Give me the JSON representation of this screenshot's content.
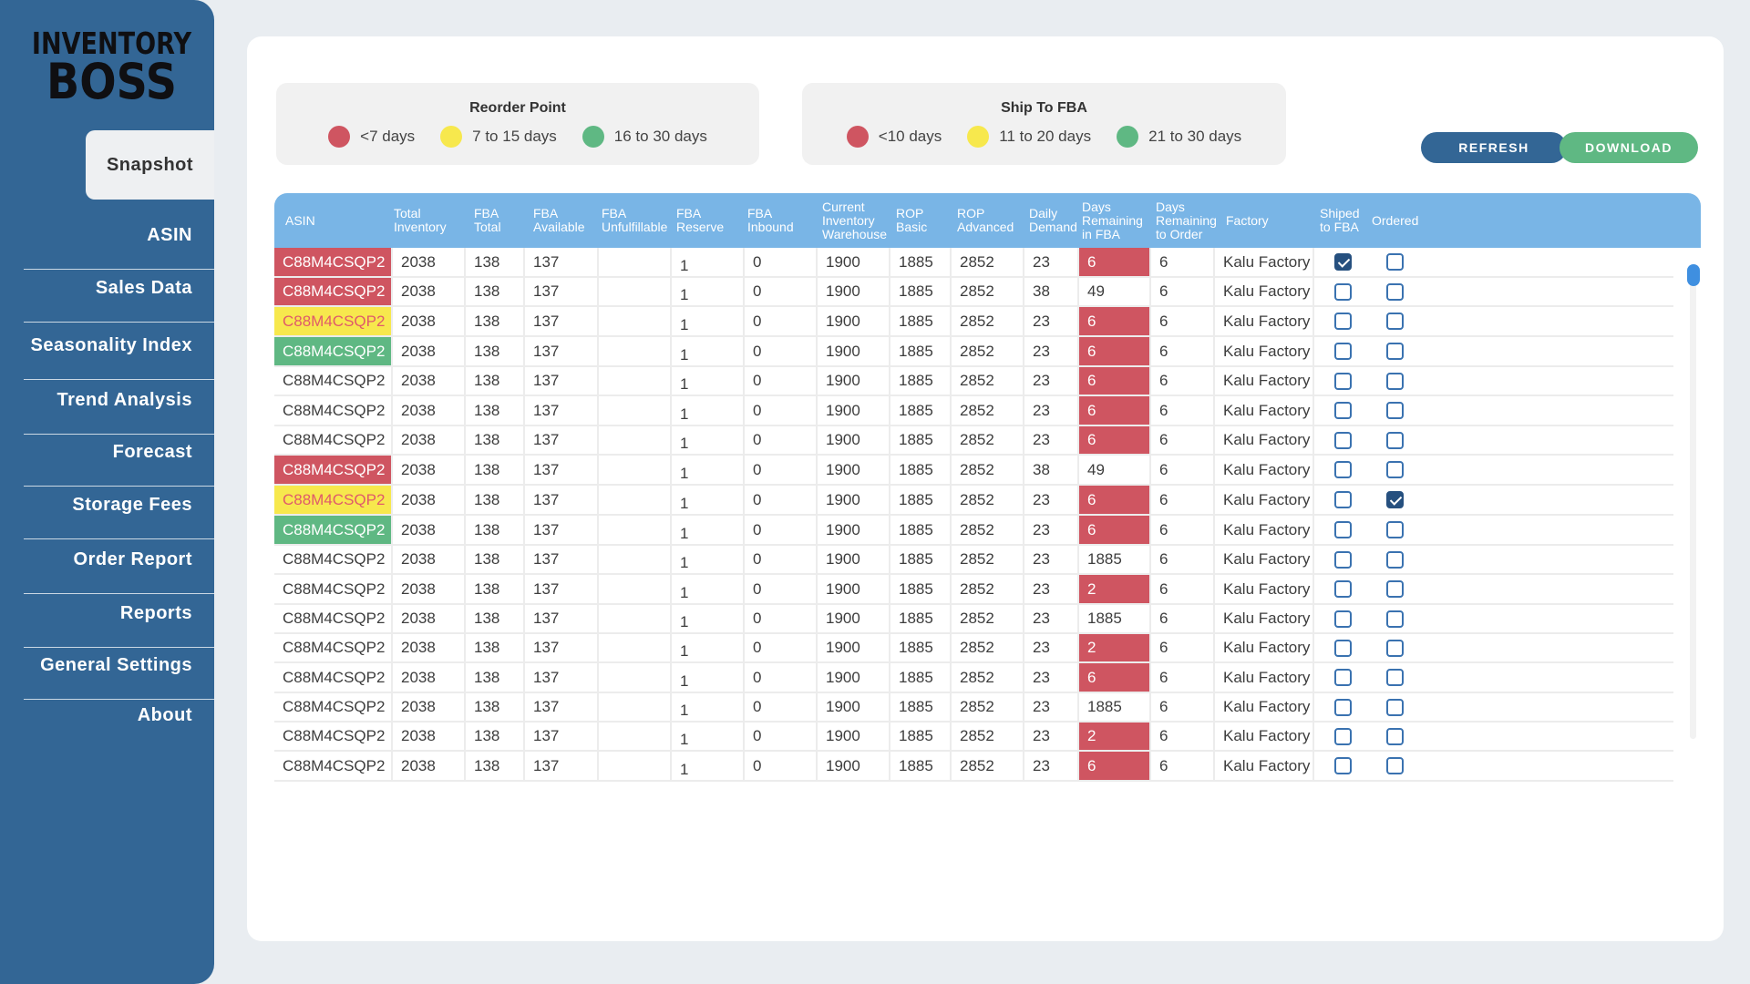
{
  "app": {
    "logo_line1": "INVENTORY",
    "logo_line2": "BOSS"
  },
  "nav": [
    "Snapshot",
    "ASIN",
    "Sales Data",
    "Seasonality Index",
    "Trend Analysis",
    "Forecast",
    "Storage Fees",
    "Order Report",
    "Reports",
    "General Settings",
    "About"
  ],
  "active_nav": "Snapshot",
  "legend_reorder": {
    "title": "Reorder Point",
    "items": [
      {
        "label": "<7 days",
        "color": "#cf5561"
      },
      {
        "label": "7 to 15 days",
        "color": "#f7e84d"
      },
      {
        "label": "16 to 30 days",
        "color": "#5fb883"
      }
    ]
  },
  "legend_ship": {
    "title": "Ship To FBA",
    "items": [
      {
        "label": "<10 days",
        "color": "#cf5561"
      },
      {
        "label": "11 to 20 days",
        "color": "#f7e84d"
      },
      {
        "label": "21 to 30 days",
        "color": "#5fb883"
      }
    ]
  },
  "buttons": {
    "refresh": "REFRESH",
    "download": "DOWNLOAD",
    "refresh_color": "#336695",
    "download_color": "#5fb883"
  },
  "columns": [
    "ASIN",
    "Total Inventory",
    "FBA Total",
    "FBA Available",
    "FBA Unfulfillable",
    "FBA Reserve",
    "FBA Inbound",
    "Current Inventory Warehouse",
    "ROP Basic",
    "ROP Advanced",
    "Daily Demand",
    "Days Remaining in FBA",
    "Days Remaining to Order",
    "Factory",
    "Shiped to FBA",
    "Ordered"
  ],
  "rows": [
    {
      "asin": "C88M4CSQP2",
      "asin_status": "red",
      "total": "2038",
      "fba_total": "138",
      "fba_avail": "137",
      "fba_unf": "",
      "fba_res": "1",
      "fba_in": "0",
      "warehouse": "1900",
      "rop_basic": "1885",
      "rop_adv": "2852",
      "demand": "23",
      "days_fba": "6",
      "days_fba_status": "red",
      "days_order": "6",
      "factory": "Kalu Factory",
      "shipped": true,
      "ordered": false
    },
    {
      "asin": "C88M4CSQP2",
      "asin_status": "red",
      "total": "2038",
      "fba_total": "138",
      "fba_avail": "137",
      "fba_unf": "",
      "fba_res": "1",
      "fba_in": "0",
      "warehouse": "1900",
      "rop_basic": "1885",
      "rop_adv": "2852",
      "demand": "38",
      "days_fba": "49",
      "days_fba_status": "",
      "days_order": "6",
      "factory": "Kalu Factory",
      "shipped": false,
      "ordered": false
    },
    {
      "asin": "C88M4CSQP2",
      "asin_status": "yellow",
      "total": "2038",
      "fba_total": "138",
      "fba_avail": "137",
      "fba_unf": "",
      "fba_res": "1",
      "fba_in": "0",
      "warehouse": "1900",
      "rop_basic": "1885",
      "rop_adv": "2852",
      "demand": "23",
      "days_fba": "6",
      "days_fba_status": "red",
      "days_order": "6",
      "factory": "Kalu Factory",
      "shipped": false,
      "ordered": false
    },
    {
      "asin": "C88M4CSQP2",
      "asin_status": "green",
      "total": "2038",
      "fba_total": "138",
      "fba_avail": "137",
      "fba_unf": "",
      "fba_res": "1",
      "fba_in": "0",
      "warehouse": "1900",
      "rop_basic": "1885",
      "rop_adv": "2852",
      "demand": "23",
      "days_fba": "6",
      "days_fba_status": "red",
      "days_order": "6",
      "factory": "Kalu Factory",
      "shipped": false,
      "ordered": false
    },
    {
      "asin": "C88M4CSQP2",
      "asin_status": "",
      "total": "2038",
      "fba_total": "138",
      "fba_avail": "137",
      "fba_unf": "",
      "fba_res": "1",
      "fba_in": "0",
      "warehouse": "1900",
      "rop_basic": "1885",
      "rop_adv": "2852",
      "demand": "23",
      "days_fba": "6",
      "days_fba_status": "red",
      "days_order": "6",
      "factory": "Kalu Factory",
      "shipped": false,
      "ordered": false
    },
    {
      "asin": "C88M4CSQP2",
      "asin_status": "",
      "total": "2038",
      "fba_total": "138",
      "fba_avail": "137",
      "fba_unf": "",
      "fba_res": "1",
      "fba_in": "0",
      "warehouse": "1900",
      "rop_basic": "1885",
      "rop_adv": "2852",
      "demand": "23",
      "days_fba": "6",
      "days_fba_status": "red",
      "days_order": "6",
      "factory": "Kalu Factory",
      "shipped": false,
      "ordered": false
    },
    {
      "asin": "C88M4CSQP2",
      "asin_status": "",
      "total": "2038",
      "fba_total": "138",
      "fba_avail": "137",
      "fba_unf": "",
      "fba_res": "1",
      "fba_in": "0",
      "warehouse": "1900",
      "rop_basic": "1885",
      "rop_adv": "2852",
      "demand": "23",
      "days_fba": "6",
      "days_fba_status": "red",
      "days_order": "6",
      "factory": "Kalu Factory",
      "shipped": false,
      "ordered": false
    },
    {
      "asin": "C88M4CSQP2",
      "asin_status": "red",
      "total": "2038",
      "fba_total": "138",
      "fba_avail": "137",
      "fba_unf": "",
      "fba_res": "1",
      "fba_in": "0",
      "warehouse": "1900",
      "rop_basic": "1885",
      "rop_adv": "2852",
      "demand": "38",
      "days_fba": "49",
      "days_fba_status": "",
      "days_order": "6",
      "factory": "Kalu Factory",
      "shipped": false,
      "ordered": false
    },
    {
      "asin": "C88M4CSQP2",
      "asin_status": "yellow",
      "total": "2038",
      "fba_total": "138",
      "fba_avail": "137",
      "fba_unf": "",
      "fba_res": "1",
      "fba_in": "0",
      "warehouse": "1900",
      "rop_basic": "1885",
      "rop_adv": "2852",
      "demand": "23",
      "days_fba": "6",
      "days_fba_status": "red",
      "days_order": "6",
      "factory": "Kalu Factory",
      "shipped": false,
      "ordered": true
    },
    {
      "asin": "C88M4CSQP2",
      "asin_status": "green",
      "total": "2038",
      "fba_total": "138",
      "fba_avail": "137",
      "fba_unf": "",
      "fba_res": "1",
      "fba_in": "0",
      "warehouse": "1900",
      "rop_basic": "1885",
      "rop_adv": "2852",
      "demand": "23",
      "days_fba": "6",
      "days_fba_status": "red",
      "days_order": "6",
      "factory": "Kalu Factory",
      "shipped": false,
      "ordered": false
    },
    {
      "asin": "C88M4CSQP2",
      "asin_status": "",
      "total": "2038",
      "fba_total": "138",
      "fba_avail": "137",
      "fba_unf": "",
      "fba_res": "1",
      "fba_in": "0",
      "warehouse": "1900",
      "rop_basic": "1885",
      "rop_adv": "2852",
      "demand": "23",
      "days_fba": "1885",
      "days_fba_status": "",
      "days_order": "6",
      "factory": "Kalu Factory",
      "shipped": false,
      "ordered": false
    },
    {
      "asin": "C88M4CSQP2",
      "asin_status": "",
      "total": "2038",
      "fba_total": "138",
      "fba_avail": "137",
      "fba_unf": "",
      "fba_res": "1",
      "fba_in": "0",
      "warehouse": "1900",
      "rop_basic": "1885",
      "rop_adv": "2852",
      "demand": "23",
      "days_fba": "2",
      "days_fba_status": "red",
      "days_order": "6",
      "factory": "Kalu Factory",
      "shipped": false,
      "ordered": false
    },
    {
      "asin": "C88M4CSQP2",
      "asin_status": "",
      "total": "2038",
      "fba_total": "138",
      "fba_avail": "137",
      "fba_unf": "",
      "fba_res": "1",
      "fba_in": "0",
      "warehouse": "1900",
      "rop_basic": "1885",
      "rop_adv": "2852",
      "demand": "23",
      "days_fba": "1885",
      "days_fba_status": "",
      "days_order": "6",
      "factory": "Kalu Factory",
      "shipped": false,
      "ordered": false
    },
    {
      "asin": "C88M4CSQP2",
      "asin_status": "",
      "total": "2038",
      "fba_total": "138",
      "fba_avail": "137",
      "fba_unf": "",
      "fba_res": "1",
      "fba_in": "0",
      "warehouse": "1900",
      "rop_basic": "1885",
      "rop_adv": "2852",
      "demand": "23",
      "days_fba": "2",
      "days_fba_status": "red",
      "days_order": "6",
      "factory": "Kalu Factory",
      "shipped": false,
      "ordered": false
    },
    {
      "asin": "C88M4CSQP2",
      "asin_status": "",
      "total": "2038",
      "fba_total": "138",
      "fba_avail": "137",
      "fba_unf": "",
      "fba_res": "1",
      "fba_in": "0",
      "warehouse": "1900",
      "rop_basic": "1885",
      "rop_adv": "2852",
      "demand": "23",
      "days_fba": "6",
      "days_fba_status": "red",
      "days_order": "6",
      "factory": "Kalu Factory",
      "shipped": false,
      "ordered": false
    },
    {
      "asin": "C88M4CSQP2",
      "asin_status": "",
      "total": "2038",
      "fba_total": "138",
      "fba_avail": "137",
      "fba_unf": "",
      "fba_res": "1",
      "fba_in": "0",
      "warehouse": "1900",
      "rop_basic": "1885",
      "rop_adv": "2852",
      "demand": "23",
      "days_fba": "1885",
      "days_fba_status": "",
      "days_order": "6",
      "factory": "Kalu Factory",
      "shipped": false,
      "ordered": false
    },
    {
      "asin": "C88M4CSQP2",
      "asin_status": "",
      "total": "2038",
      "fba_total": "138",
      "fba_avail": "137",
      "fba_unf": "",
      "fba_res": "1",
      "fba_in": "0",
      "warehouse": "1900",
      "rop_basic": "1885",
      "rop_adv": "2852",
      "demand": "23",
      "days_fba": "2",
      "days_fba_status": "red",
      "days_order": "6",
      "factory": "Kalu Factory",
      "shipped": false,
      "ordered": false
    },
    {
      "asin": "C88M4CSQP2",
      "asin_status": "",
      "total": "2038",
      "fba_total": "138",
      "fba_avail": "137",
      "fba_unf": "",
      "fba_res": "1",
      "fba_in": "0",
      "warehouse": "1900",
      "rop_basic": "1885",
      "rop_adv": "2852",
      "demand": "23",
      "days_fba": "6",
      "days_fba_status": "red",
      "days_order": "6",
      "factory": "Kalu Factory",
      "shipped": false,
      "ordered": false
    }
  ]
}
